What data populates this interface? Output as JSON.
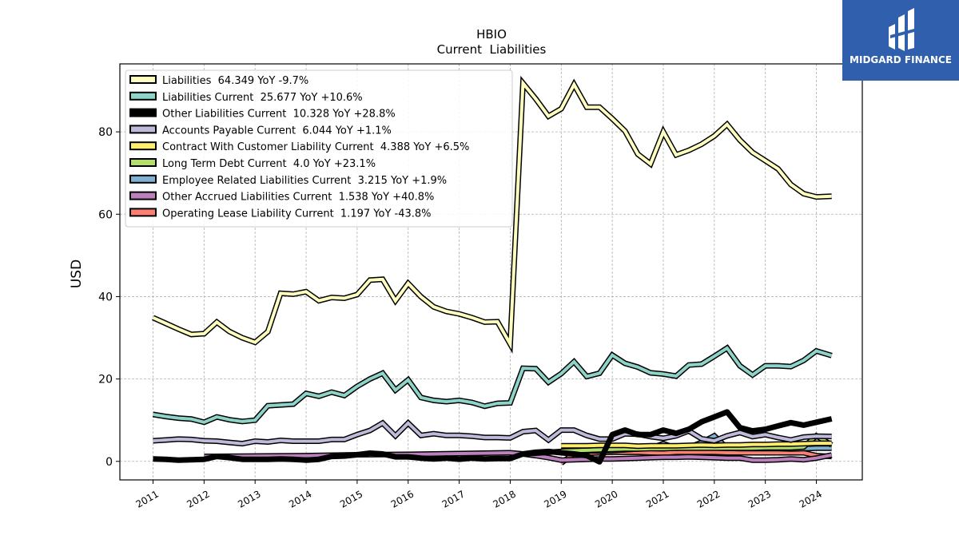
{
  "brand": {
    "name": "MIDGARD FINANCE",
    "bg_color": "#2f5fad",
    "icon": "midgard-logo-icon"
  },
  "chart_data": {
    "type": "line",
    "title": "HBIO",
    "subtitle": "Current  Liabilities",
    "ylabel": "USD",
    "xlabel": "",
    "ylim": [
      -4.5,
      96.5
    ],
    "xlim": [
      2010.35,
      2024.9
    ],
    "yticks": [
      0,
      20,
      40,
      60,
      80
    ],
    "xticks": [
      "2011",
      "2012",
      "2013",
      "2014",
      "2015",
      "2016",
      "2017",
      "2018",
      "2019",
      "2020",
      "2021",
      "2022",
      "2023",
      "2024"
    ],
    "grid": true,
    "legend_position": "top-left",
    "series": [
      {
        "name": "Liabilities",
        "legend": "Liabilities  64.349 YoY -9.7%",
        "color": "#ffffbf",
        "x": [
          2011.0,
          2011.25,
          2011.5,
          2011.75,
          2012.0,
          2012.25,
          2012.5,
          2012.75,
          2013.0,
          2013.25,
          2013.5,
          2013.75,
          2014.0,
          2014.25,
          2014.5,
          2014.75,
          2015.0,
          2015.25,
          2015.5,
          2015.75,
          2016.0,
          2016.25,
          2016.5,
          2016.75,
          2017.0,
          2017.25,
          2017.5,
          2017.75,
          2018.0,
          2018.25,
          2018.5,
          2018.75,
          2019.0,
          2019.25,
          2019.5,
          2019.75,
          2020.0,
          2020.25,
          2020.5,
          2020.75,
          2021.0,
          2021.25,
          2021.5,
          2021.75,
          2022.0,
          2022.25,
          2022.5,
          2022.75,
          2023.0,
          2023.25,
          2023.5,
          2023.75,
          2024.0,
          2024.3
        ],
        "values": [
          34.9,
          33.5,
          32.1,
          30.8,
          31.0,
          33.8,
          31.5,
          30.0,
          28.9,
          31.5,
          40.8,
          40.6,
          41.2,
          39.0,
          39.8,
          39.6,
          40.5,
          44.0,
          44.2,
          39.0,
          43.2,
          40.0,
          37.5,
          36.4,
          35.8,
          34.9,
          33.8,
          33.9,
          28.5,
          91.8,
          88.0,
          83.8,
          85.6,
          91.5,
          86.0,
          86.0,
          83.2,
          80.2,
          74.6,
          72.2,
          80.0,
          74.4,
          75.5,
          77.0,
          79.0,
          81.8,
          78.0,
          75.0,
          73.0,
          71.0,
          67.2,
          65.0,
          64.2,
          64.35
        ]
      },
      {
        "name": "Liabilities Current",
        "legend": "Liabilities Current  25.677 YoY +10.6%",
        "color": "#8dd3c7",
        "x": [
          2011.0,
          2011.25,
          2011.5,
          2011.75,
          2012.0,
          2012.25,
          2012.5,
          2012.75,
          2013.0,
          2013.25,
          2013.5,
          2013.75,
          2014.0,
          2014.25,
          2014.5,
          2014.75,
          2015.0,
          2015.25,
          2015.5,
          2015.75,
          2016.0,
          2016.25,
          2016.5,
          2016.75,
          2017.0,
          2017.25,
          2017.5,
          2017.75,
          2018.0,
          2018.25,
          2018.5,
          2018.75,
          2019.0,
          2019.25,
          2019.5,
          2019.75,
          2020.0,
          2020.25,
          2020.5,
          2020.75,
          2021.0,
          2021.25,
          2021.5,
          2021.75,
          2022.0,
          2022.25,
          2022.5,
          2022.75,
          2023.0,
          2023.25,
          2023.5,
          2023.75,
          2024.0,
          2024.3
        ],
        "values": [
          11.4,
          10.9,
          10.5,
          10.3,
          9.5,
          10.8,
          10.1,
          9.7,
          10.0,
          13.5,
          13.7,
          13.9,
          16.5,
          15.8,
          16.8,
          16.0,
          18.2,
          20.0,
          21.4,
          17.3,
          19.8,
          15.5,
          14.8,
          14.5,
          14.8,
          14.3,
          13.4,
          14.1,
          14.2,
          22.6,
          22.5,
          19.2,
          21.3,
          24.2,
          20.6,
          21.4,
          25.8,
          23.8,
          22.9,
          21.5,
          21.2,
          20.7,
          23.4,
          23.6,
          25.5,
          27.5,
          23.2,
          21.0,
          23.2,
          23.2,
          23.0,
          24.5,
          26.8,
          25.68
        ]
      },
      {
        "name": "Other Liabilities Current",
        "legend": "Other Liabilities Current  10.328 YoY +28.8%",
        "color": "#000000",
        "x": [
          2011.0,
          2011.25,
          2011.5,
          2011.75,
          2012.0,
          2012.25,
          2012.5,
          2012.75,
          2013.0,
          2013.25,
          2013.5,
          2013.75,
          2014.0,
          2014.25,
          2014.5,
          2014.75,
          2015.0,
          2015.25,
          2015.5,
          2015.75,
          2016.0,
          2016.25,
          2016.5,
          2016.75,
          2017.0,
          2017.25,
          2017.5,
          2017.75,
          2018.0,
          2018.25,
          2018.5,
          2018.75,
          2019.0,
          2019.25,
          2019.5,
          2019.75,
          2020.0,
          2020.25,
          2020.5,
          2020.75,
          2021.0,
          2021.25,
          2021.5,
          2021.75,
          2022.0,
          2022.25,
          2022.5,
          2022.75,
          2023.0,
          2023.25,
          2023.5,
          2023.75,
          2024.0,
          2024.3
        ],
        "values": [
          0.6,
          0.5,
          0.3,
          0.4,
          0.5,
          1.2,
          0.9,
          0.5,
          0.5,
          0.5,
          0.6,
          0.5,
          0.3,
          0.5,
          1.2,
          1.3,
          1.6,
          2.0,
          1.8,
          1.1,
          1.1,
          0.8,
          0.6,
          0.8,
          0.5,
          0.8,
          0.6,
          0.7,
          0.7,
          1.8,
          2.2,
          2.4,
          2.1,
          1.8,
          1.4,
          -0.1,
          6.5,
          7.6,
          6.5,
          6.5,
          7.6,
          6.8,
          7.8,
          9.6,
          10.8,
          12.0,
          8.2,
          7.4,
          7.8,
          8.6,
          9.4,
          8.8,
          9.5,
          10.33
        ]
      },
      {
        "name": "Accounts Payable Current",
        "legend": "Accounts Payable Current  6.044 YoY +1.1%",
        "color": "#bebada",
        "x": [
          2011.0,
          2011.25,
          2011.5,
          2011.75,
          2012.0,
          2012.25,
          2012.5,
          2012.75,
          2013.0,
          2013.25,
          2013.5,
          2013.75,
          2014.0,
          2014.25,
          2014.5,
          2014.75,
          2015.0,
          2015.25,
          2015.5,
          2015.75,
          2016.0,
          2016.25,
          2016.5,
          2016.75,
          2017.0,
          2017.25,
          2017.5,
          2017.75,
          2018.0,
          2018.25,
          2018.5,
          2018.75,
          2019.0,
          2019.25,
          2019.5,
          2019.75,
          2020.0,
          2020.25,
          2020.5,
          2020.75,
          2021.0,
          2021.25,
          2021.5,
          2021.75,
          2022.0,
          2022.25,
          2022.5,
          2022.75,
          2023.0,
          2023.25,
          2023.5,
          2023.75,
          2024.0,
          2024.3
        ],
        "values": [
          5.0,
          5.2,
          5.4,
          5.3,
          5.0,
          4.9,
          4.6,
          4.3,
          4.9,
          4.7,
          5.1,
          4.9,
          4.9,
          4.9,
          5.3,
          5.3,
          6.5,
          7.5,
          9.3,
          6.2,
          9.3,
          6.3,
          6.7,
          6.3,
          6.3,
          6.1,
          5.8,
          5.8,
          5.7,
          7.2,
          7.5,
          5.2,
          7.6,
          7.6,
          6.3,
          5.4,
          5.4,
          6.7,
          6.6,
          6.0,
          5.6,
          6.2,
          7.4,
          5.5,
          5.0,
          6.2,
          7.0,
          6.0,
          6.5,
          5.8,
          5.2,
          5.9,
          6.1,
          6.04
        ]
      },
      {
        "name": "Contract With Customer Liability Current",
        "legend": "Contract With Customer Liability Current  4.388 YoY +6.5%",
        "color": "#ffed6f",
        "x": [
          2019.0,
          2019.25,
          2019.5,
          2019.75,
          2020.0,
          2020.25,
          2020.5,
          2020.75,
          2021.0,
          2021.25,
          2021.5,
          2021.75,
          2022.0,
          2022.25,
          2022.5,
          2022.75,
          2023.0,
          2023.25,
          2023.5,
          2023.75,
          2024.0,
          2024.3
        ],
        "values": [
          3.8,
          3.8,
          3.8,
          3.9,
          3.9,
          3.9,
          3.7,
          3.8,
          3.8,
          3.8,
          3.9,
          4.0,
          3.9,
          4.0,
          4.0,
          4.1,
          4.1,
          4.2,
          4.2,
          4.3,
          4.4,
          4.39
        ]
      },
      {
        "name": "Long Term Debt Current",
        "legend": "Long Term Debt Current  4.0 YoY +23.1%",
        "color": "#b3de69",
        "x": [
          2019.0,
          2019.25,
          2019.5,
          2019.75,
          2020.0,
          2020.25,
          2020.5,
          2020.75,
          2021.0,
          2021.25,
          2021.5,
          2021.75,
          2022.0,
          2022.25,
          2022.5,
          2022.75,
          2023.0,
          2023.25,
          2023.5,
          2023.75,
          2024.0,
          2024.3
        ],
        "values": [
          2.5,
          2.6,
          2.7,
          2.8,
          2.9,
          3.0,
          3.0,
          3.1,
          3.1,
          3.2,
          3.2,
          3.2,
          3.2,
          3.2,
          3.2,
          3.2,
          3.3,
          3.3,
          3.3,
          3.5,
          6.2,
          4.0
        ]
      },
      {
        "name": "Employee Related Liabilities Current",
        "legend": "Employee Related Liabilities Current  3.215 YoY +1.9%",
        "color": "#80b1d3",
        "x": [
          2018.25,
          2018.5,
          2018.75,
          2019.0,
          2019.25,
          2019.5,
          2019.75,
          2020.0,
          2020.25,
          2020.5,
          2020.75,
          2021.0,
          2021.25,
          2021.5,
          2021.75,
          2022.0,
          2022.25,
          2022.5,
          2022.75,
          2023.0,
          2023.25,
          2023.5,
          2023.75,
          2024.0,
          2024.3
        ],
        "values": [
          1.8,
          2.0,
          2.2,
          2.4,
          2.5,
          2.6,
          2.5,
          2.6,
          2.8,
          3.0,
          3.2,
          4.3,
          3.2,
          3.4,
          4.6,
          6.2,
          3.2,
          3.1,
          3.1,
          3.1,
          3.1,
          3.0,
          3.1,
          3.2,
          3.22
        ]
      },
      {
        "name": "Other Accrued Liabilities Current",
        "legend": "Other Accrued Liabilities Current  1.538 YoY +40.8%",
        "color": "#bc80bd",
        "x": [
          2012.0,
          2013.0,
          2014.0,
          2015.0,
          2016.0,
          2017.0,
          2018.0,
          2018.25,
          2018.5,
          2018.75,
          2019.0,
          2019.25,
          2019.5,
          2019.75,
          2020.0,
          2020.25,
          2020.5,
          2020.75,
          2021.0,
          2021.25,
          2021.5,
          2021.75,
          2022.0,
          2022.25,
          2022.5,
          2022.75,
          2023.0,
          2023.25,
          2023.5,
          2023.75,
          2024.0,
          2024.3
        ],
        "values": [
          1.2,
          1.3,
          1.4,
          1.6,
          1.7,
          1.9,
          2.1,
          1.8,
          1.4,
          0.9,
          0.3,
          0.4,
          0.5,
          0.6,
          0.6,
          0.7,
          0.8,
          0.9,
          1.0,
          1.0,
          1.1,
          1.0,
          0.9,
          0.8,
          0.8,
          0.3,
          0.3,
          0.4,
          0.6,
          0.4,
          0.8,
          1.54
        ]
      },
      {
        "name": "Operating Lease Liability Current",
        "legend": "Operating Lease Liability Current  1.197 YoY -43.8%",
        "color": "#fb8072",
        "x": [
          2019.0,
          2019.25,
          2019.5,
          2019.75,
          2020.0,
          2020.25,
          2020.5,
          2020.75,
          2021.0,
          2021.25,
          2021.5,
          2021.75,
          2022.0,
          2022.25,
          2022.5,
          2022.75,
          2023.0,
          2023.25,
          2023.5,
          2023.75,
          2024.0,
          2024.3
        ],
        "values": [
          -0.4,
          1.9,
          2.0,
          2.1,
          2.2,
          2.2,
          2.2,
          2.1,
          2.0,
          2.2,
          2.2,
          2.2,
          2.2,
          2.1,
          2.1,
          2.1,
          2.1,
          2.1,
          2.1,
          2.1,
          1.4,
          1.2
        ]
      }
    ]
  }
}
